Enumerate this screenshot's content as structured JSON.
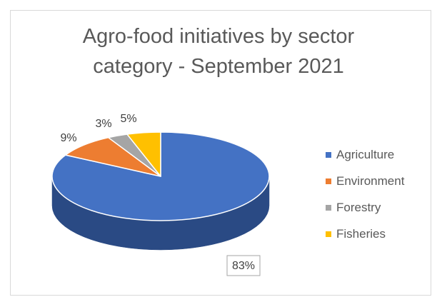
{
  "chart_data": {
    "type": "pie",
    "title_lines": [
      "Agro-food initiatives by sector",
      "category - September 2021"
    ],
    "slices": [
      {
        "label": "Agriculture",
        "value": 83,
        "display": "83%",
        "color": "#4472c4",
        "side_color": "#2a4a84"
      },
      {
        "label": "Environment",
        "value": 9,
        "display": "9%",
        "color": "#ed7d31",
        "side_color": "#b55a1c"
      },
      {
        "label": "Forestry",
        "value": 3,
        "display": "3%",
        "color": "#a5a5a5",
        "side_color": "#7c7c7c"
      },
      {
        "label": "Fisheries",
        "value": 5,
        "display": "5%",
        "color": "#ffc000",
        "side_color": "#c79400"
      }
    ],
    "legend_position": "right",
    "three_d": true
  }
}
